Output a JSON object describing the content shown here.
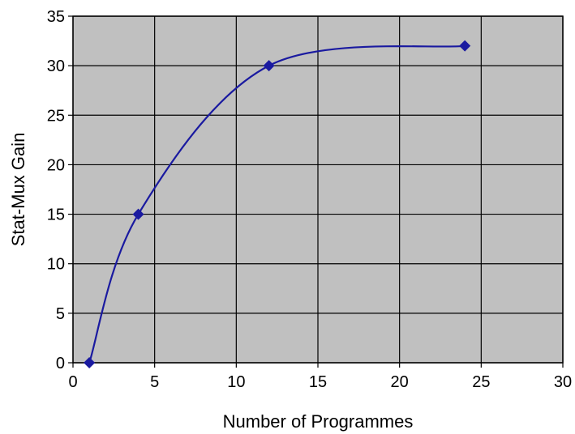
{
  "chart_data": {
    "type": "line",
    "title": "",
    "xlabel": "Number of Programmes",
    "ylabel": "Stat-Mux Gain",
    "xlim": [
      0,
      30
    ],
    "ylim": [
      0,
      35
    ],
    "x_ticks": [
      "0",
      "5",
      "10",
      "15",
      "20",
      "25",
      "30"
    ],
    "y_ticks": [
      "0",
      "5",
      "10",
      "15",
      "20",
      "25",
      "30",
      "35"
    ],
    "grid": true,
    "smooth": true,
    "series": [
      {
        "x": [
          1,
          4,
          12,
          24
        ],
        "values": [
          0,
          15,
          30,
          32
        ],
        "marker": "diamond"
      }
    ],
    "colors": {
      "plot_background": "#c0c0c0",
      "grid": "#000000",
      "line": "#1a1aa0",
      "marker": "#1a1aa0"
    }
  }
}
